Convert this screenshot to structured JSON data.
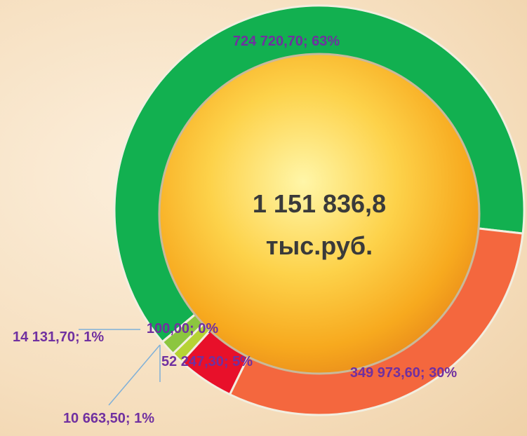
{
  "chart_data": {
    "type": "donut",
    "values": [
      724720.7,
      349973.6,
      52247.3,
      10663.5,
      14131.7,
      100.0
    ],
    "value_labels": [
      "724 720,70; 63%",
      "349 973,60; 30%",
      "52 247,30; 5%",
      "10 663,50; 1%",
      "14 131,70; 1%",
      "100,00; 0%"
    ],
    "colors": [
      "#12b050",
      "#f4673e",
      "#e8102a",
      "#b6d334",
      "#8cc63f",
      "#e9e24a"
    ],
    "annotations": [
      "1 151 836,8",
      "тыс.руб."
    ]
  }
}
